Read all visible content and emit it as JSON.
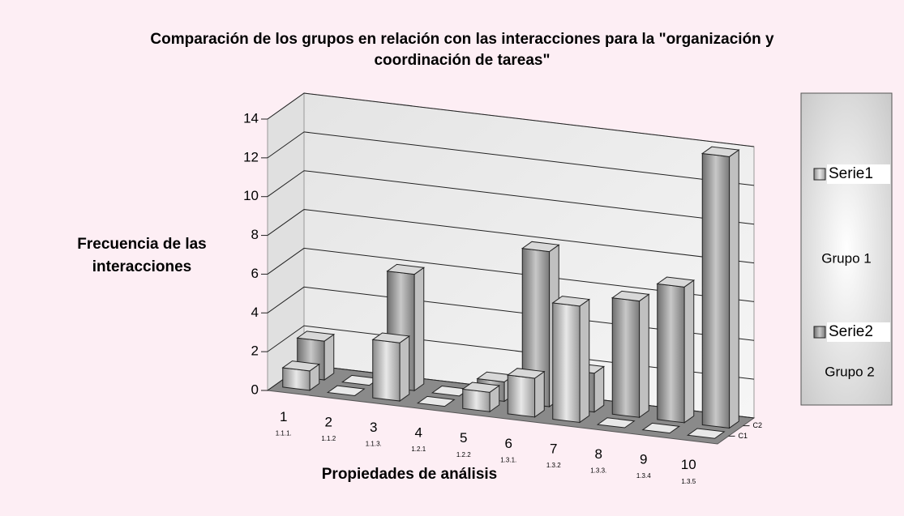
{
  "chart_data": {
    "type": "bar3d",
    "title": "Comparación de los grupos en relación con las interacciones para la \"organización y coordinación de tareas\"",
    "x_label": "Propiedades de análisis",
    "y_label": "Frecuencia de las interacciones",
    "categories": [
      "1",
      "2",
      "3",
      "4",
      "5",
      "6",
      "7",
      "8",
      "9",
      "10"
    ],
    "category_codes": [
      "1.1.1.",
      "1.1.2",
      "1.1.3.",
      "1.2.1",
      "1.2.2",
      "1.3.1.",
      "1.3.2",
      "1.3.3.",
      "1.3.4",
      "1.3.5"
    ],
    "depth_labels": [
      "C1",
      "C2"
    ],
    "series": [
      {
        "name": "Serie1",
        "group": "Grupo 1",
        "color": "#b4b4b4",
        "values": [
          1,
          0,
          3,
          0,
          1,
          2,
          6,
          0,
          0,
          0
        ]
      },
      {
        "name": "Serie2",
        "group": "Grupo 2",
        "color": "#8c8c8c",
        "values": [
          2,
          0,
          6,
          0,
          1,
          8,
          2,
          6,
          7,
          14
        ]
      }
    ],
    "ylim": [
      0,
      14
    ],
    "yticks": [
      0,
      2,
      4,
      6,
      8,
      10,
      12,
      14
    ],
    "grid": true
  }
}
